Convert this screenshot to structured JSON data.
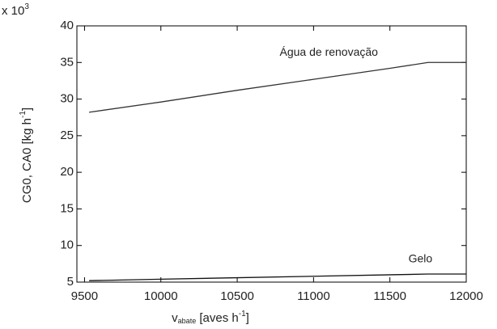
{
  "chart_data": {
    "type": "line",
    "x_label": {
      "main": "v",
      "sub": "abate",
      "rest": " [aves h",
      "sup": "-1",
      "end": "]"
    },
    "y_label": {
      "main": "CG0, CA0 [kg h",
      "sup": "-1",
      "end": "]"
    },
    "multiplier": {
      "main": "x 10",
      "sup": "3"
    },
    "x": [
      9530,
      10000,
      10500,
      11000,
      11500,
      11750,
      12000
    ],
    "series": [
      {
        "name": "Água de renovação",
        "color": "#333333",
        "values": [
          28.2,
          29.6,
          31.2,
          32.7,
          34.2,
          35.0,
          35.0
        ]
      },
      {
        "name": "Gelo",
        "color": "#111111",
        "values": [
          5.2,
          5.4,
          5.6,
          5.8,
          6.0,
          6.1,
          6.1
        ]
      }
    ],
    "label_positions": [
      {
        "x": 11100,
        "y": 36.3
      },
      {
        "x": 11700,
        "y": 8.1
      }
    ],
    "xlim": [
      9450,
      12000
    ],
    "xticks": [
      9500,
      10000,
      10500,
      11000,
      11500,
      12000
    ],
    "ylim": [
      5,
      40
    ],
    "yticks": [
      5,
      10,
      15,
      20,
      25,
      30,
      35,
      40
    ]
  }
}
